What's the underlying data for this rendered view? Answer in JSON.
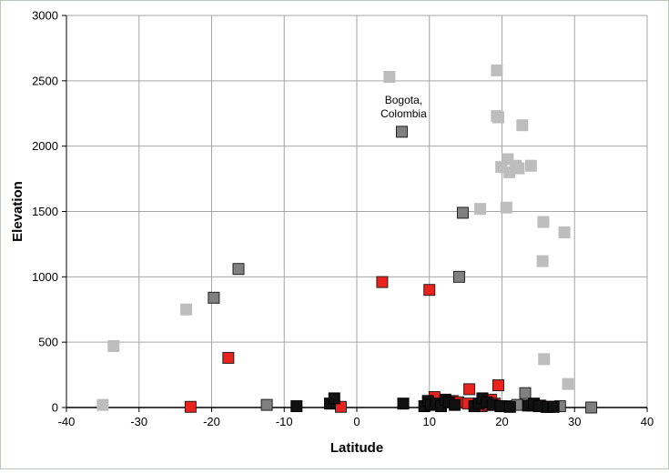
{
  "chart_data": {
    "type": "scatter",
    "title": "",
    "xlabel": "Latitude",
    "ylabel": "Elevation",
    "xlim": [
      -40,
      40
    ],
    "ylim": [
      0,
      3000
    ],
    "x_ticks": [
      -40,
      -30,
      -20,
      -10,
      0,
      10,
      20,
      30,
      40
    ],
    "y_ticks": [
      0,
      500,
      1000,
      1500,
      2000,
      2500,
      3000
    ],
    "grid": true,
    "legend": "none",
    "annotations": [
      {
        "lines": [
          "Bogota,",
          "Colombia"
        ],
        "x": 6.2,
        "y": 2110
      }
    ],
    "series": [
      {
        "color": "#bdbdbd",
        "border": "#bdbdbd",
        "points": [
          [
            -35,
            20
          ],
          [
            -33.5,
            470
          ],
          [
            -23.5,
            750
          ],
          [
            4.5,
            2530
          ],
          [
            19.3,
            2580
          ],
          [
            19.3,
            2230
          ],
          [
            19.5,
            2220
          ],
          [
            22.8,
            2160
          ],
          [
            20.8,
            1900
          ],
          [
            19.9,
            1840
          ],
          [
            21,
            1800
          ],
          [
            21.9,
            1850
          ],
          [
            22.3,
            1830
          ],
          [
            24,
            1850
          ],
          [
            17,
            1520
          ],
          [
            20.6,
            1530
          ],
          [
            25.7,
            1420
          ],
          [
            28.6,
            1340
          ],
          [
            25.6,
            1120
          ],
          [
            25.8,
            370
          ],
          [
            29.1,
            180
          ]
        ]
      },
      {
        "color": "#808080",
        "border": "#222222",
        "points": [
          [
            6.2,
            2110
          ],
          [
            14.6,
            1490
          ],
          [
            -16.3,
            1060
          ],
          [
            14.1,
            1000
          ],
          [
            -19.7,
            840
          ],
          [
            -12.4,
            20
          ],
          [
            23.2,
            110
          ],
          [
            22.1,
            20
          ],
          [
            24.1,
            15
          ],
          [
            26.1,
            5
          ],
          [
            28,
            10
          ],
          [
            32.3,
            0
          ]
        ]
      },
      {
        "color": "#e8231e",
        "border": "#222222",
        "points": [
          [
            3.5,
            960
          ],
          [
            10,
            900
          ],
          [
            -17.7,
            380
          ],
          [
            -22.9,
            5
          ],
          [
            -2.2,
            5
          ],
          [
            10.7,
            80
          ],
          [
            13.2,
            50
          ],
          [
            14,
            40
          ],
          [
            15.5,
            140
          ],
          [
            15.3,
            30
          ],
          [
            17.2,
            10
          ],
          [
            18.1,
            20
          ],
          [
            18.5,
            60
          ],
          [
            19,
            30
          ],
          [
            19.5,
            170
          ],
          [
            20.5,
            10
          ],
          [
            25.3,
            15
          ],
          [
            26.5,
            5
          ]
        ]
      },
      {
        "color": "#111111",
        "border": "#000000",
        "points": [
          [
            -8.3,
            10
          ],
          [
            -3.7,
            30
          ],
          [
            -3.1,
            70
          ],
          [
            6.4,
            30
          ],
          [
            9.3,
            10
          ],
          [
            9.8,
            50
          ],
          [
            10.2,
            20
          ],
          [
            10.9,
            30
          ],
          [
            11.6,
            10
          ],
          [
            12.2,
            60
          ],
          [
            12.7,
            40
          ],
          [
            13.5,
            20
          ],
          [
            16.2,
            10
          ],
          [
            16.8,
            30
          ],
          [
            17.3,
            70
          ],
          [
            17.9,
            40
          ],
          [
            18.7,
            20
          ],
          [
            19.8,
            10
          ],
          [
            21.1,
            5
          ],
          [
            23.6,
            15
          ],
          [
            24.4,
            30
          ],
          [
            25.1,
            10
          ],
          [
            26.3,
            5
          ],
          [
            27.1,
            5
          ]
        ]
      }
    ]
  }
}
